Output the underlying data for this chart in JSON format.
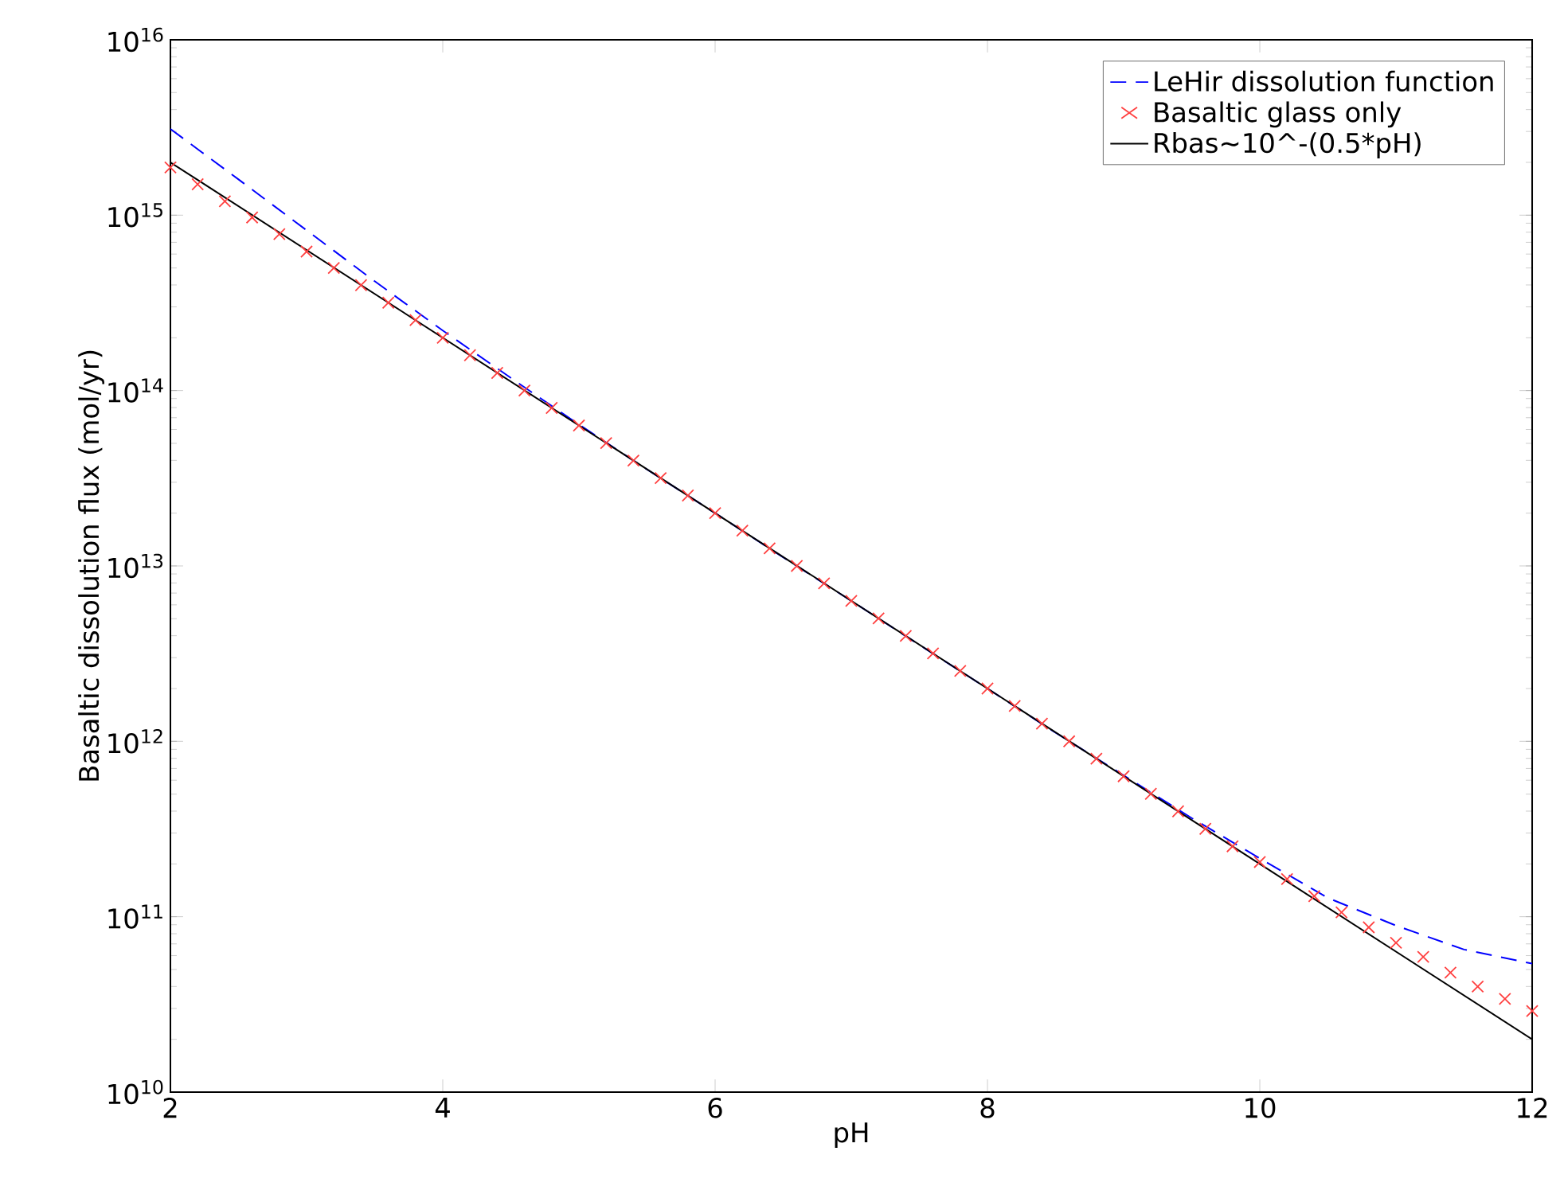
{
  "chart_data": {
    "type": "line",
    "xlabel": "pH",
    "ylabel": "Basaltic dissolution flux (mol/yr)",
    "log": "y",
    "xlim": [
      2,
      12
    ],
    "ylim": [
      10000000000.0,
      1e+16
    ],
    "xticks": [
      2,
      4,
      6,
      8,
      10,
      12
    ],
    "yticks": [
      {
        "value": 10000000000.0,
        "label": "10$^{10}$"
      },
      {
        "value": 100000000000.0,
        "label": "10$^{11}$"
      },
      {
        "value": 1000000000000.0,
        "label": "10$^{12}$"
      },
      {
        "value": 10000000000000.0,
        "label": "10$^{13}$"
      },
      {
        "value": 100000000000000.0,
        "label": "10$^{14}$"
      },
      {
        "value": 1000000000000000.0,
        "label": "10$^{15}$"
      },
      {
        "value": 1e+16,
        "label": "10$^{16}$"
      }
    ],
    "grid": false,
    "legend": "top right",
    "series": [
      {
        "name": "LeHir dissolution function",
        "color": "#0000ff",
        "line_style": "dashed",
        "marker": "none",
        "x": [
          2,
          2.5,
          3,
          3.5,
          4,
          4.5,
          5,
          5.5,
          6,
          6.5,
          7,
          7.5,
          8,
          8.5,
          9,
          9.5,
          10,
          10.5,
          11,
          11.5,
          12
        ],
        "values": [
          3100000000000000.0,
          1600000000000000.0,
          820000000000000.0,
          420000000000000.0,
          220000000000000.0,
          118000000000000.0,
          64000000000000.0,
          35500000000000.0,
          20000000000000.0,
          11200000000000.0,
          6320000000000.0,
          3550000000000.0,
          2000000000000.0,
          1120000000000.0,
          640000000000.0,
          365000000000.0,
          215000000000.0,
          128000000000.0,
          89000000000.0,
          65000000000.0,
          54000000000.0
        ]
      },
      {
        "name": "Basaltic glass only",
        "type": "scatter",
        "color": "#ff4040",
        "marker": "cross",
        "x": [
          2,
          2.2,
          2.4,
          2.6,
          2.8,
          3,
          3.2,
          3.4,
          3.6,
          3.8,
          4,
          4.2,
          4.4,
          4.6,
          4.8,
          5,
          5.2,
          5.4,
          5.6,
          5.8,
          6,
          6.2,
          6.4,
          6.6,
          6.8,
          7,
          7.2,
          7.4,
          7.6,
          7.8,
          8,
          8.2,
          8.4,
          8.6,
          8.8,
          9,
          9.2,
          9.4,
          9.6,
          9.8,
          10,
          10.2,
          10.4,
          10.6,
          10.8,
          11,
          11.2,
          11.4,
          11.6,
          11.8,
          12
        ],
        "values": [
          1870000000000000.0,
          1500000000000000.0,
          1200000000000000.0,
          970000000000000.0,
          780000000000000.0,
          620000000000000.0,
          500000000000000.0,
          399000000000000.0,
          317000000000000.0,
          252000000000000.0,
          200000000000000.0,
          159000000000000.0,
          126000000000000.0,
          100000000000000.0,
          79600000000000.0,
          63200000000000.0,
          50200000000000.0,
          39900000000000.0,
          31700000000000.0,
          25200000000000.0,
          20000000000000.0,
          15900000000000.0,
          12600000000000.0,
          10000000000000.0,
          7960000000000.0,
          6320000000000.0,
          5020000000000.0,
          3990000000000.0,
          3170000000000.0,
          2520000000000.0,
          2000000000000.0,
          1590000000000.0,
          1260000000000.0,
          1000000000000.0,
          796000000000.0,
          632000000000.0,
          502000000000.0,
          399000000000.0,
          317000000000.0,
          252000000000.0,
          205000000000.0,
          164000000000.0,
          131000000000.0,
          106000000000.0,
          87000000000.0,
          71000000000.0,
          59000000000.0,
          48000000000.0,
          40000000000.0,
          34000000000.0,
          29000000000.0
        ]
      },
      {
        "name": "Rbas~10^-(0.5*pH)",
        "color": "#000000",
        "line_style": "solid",
        "marker": "none",
        "x": [
          2,
          12
        ],
        "values": [
          2000000000000000.0,
          20000000000.0
        ]
      }
    ]
  }
}
